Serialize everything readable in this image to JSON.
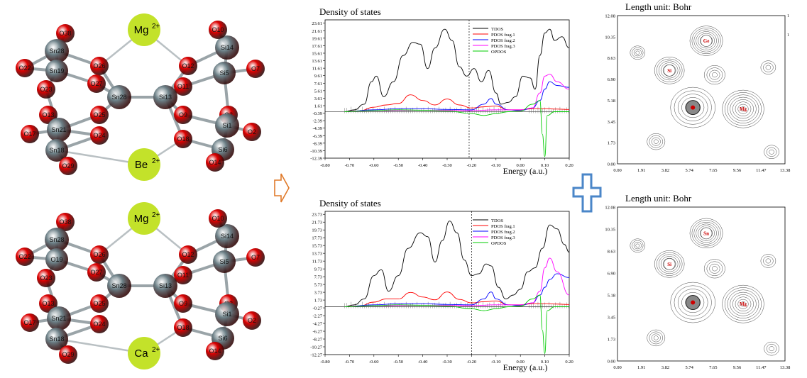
{
  "molecules": {
    "top": {
      "cations": [
        "Mg2+",
        "Be2+"
      ],
      "labels": [
        "O38",
        "Sn28",
        "O22",
        "Sn19",
        "O23",
        "O26",
        "O27",
        "Sn28",
        "O13",
        "O25",
        "Sn21",
        "O17",
        "O24",
        "Sn18",
        "O29",
        "O18",
        "Si14",
        "O12",
        "Si5",
        "O7",
        "O11",
        "Si13",
        "O9",
        "O3",
        "O10",
        "Si1",
        "O2",
        "Si6",
        "O14"
      ]
    },
    "bottom": {
      "cations": [
        "Mg2+",
        "Ca2+"
      ],
      "labels": [
        "O38",
        "Sn28",
        "O22",
        "O19",
        "O23",
        "O26",
        "O27",
        "Sn28",
        "O13",
        "O25",
        "Sn21",
        "O17",
        "O24",
        "Sn18",
        "O29",
        "O18",
        "Si14",
        "O12",
        "Si5",
        "O7",
        "O11",
        "Si13",
        "O9",
        "O3",
        "O10",
        "Si1",
        "O2",
        "Si6",
        "O14"
      ]
    }
  },
  "colors": {
    "tdos": "#000000",
    "pdos1": "#ff0000",
    "pdos2": "#0000ff",
    "pdos3": "#ff00ff",
    "opdos": "#00cc00",
    "oxygen": "#dd0000",
    "metal": "#6b7f86",
    "cation": "#c3e22a",
    "arrow": "#e07a2a",
    "plus": "#4a86c8"
  },
  "chart_data": [
    {
      "type": "line",
      "title": "Density of states",
      "xlabel": "Energy (a.u.)",
      "ylabel": "",
      "xlim": [
        -0.8,
        0.2
      ],
      "ylim": [
        -12.39,
        24.5
      ],
      "x_ticks": [
        "-0.80",
        "-0.70",
        "-0.60",
        "-0.50",
        "-0.40",
        "-0.30",
        "-0.20",
        "-0.10",
        "0.00",
        "0.10",
        "0.20"
      ],
      "y_ticks": [
        "23.61",
        "21.61",
        "19.61",
        "17.61",
        "15.61",
        "13.61",
        "11.61",
        "9.61",
        "7.61",
        "5.61",
        "3.61",
        "1.61",
        "-0.39",
        "-2.39",
        "-4.39",
        "-6.39",
        "-8.39",
        "-10.39",
        "-12.39"
      ],
      "homo_line": -0.21,
      "legend": [
        "TDOS",
        "PDOS frag.1",
        "PDOS frag.2",
        "PDOS frag.3",
        "OPDOS"
      ],
      "legend_position": "top-right",
      "series": [
        {
          "name": "TDOS",
          "x": [
            -0.72,
            -0.68,
            -0.64,
            -0.61,
            -0.59,
            -0.56,
            -0.52,
            -0.48,
            -0.44,
            -0.41,
            -0.38,
            -0.35,
            -0.31,
            -0.28,
            -0.25,
            -0.22,
            -0.19,
            -0.16,
            -0.13,
            -0.1,
            -0.08,
            -0.05,
            -0.02,
            0.01,
            0.04,
            0.06,
            0.08,
            0.1,
            0.12,
            0.14,
            0.17,
            0.2
          ],
          "y": [
            0,
            0.5,
            2,
            8,
            9.5,
            4,
            8,
            15,
            18.5,
            18,
            11.5,
            17,
            22,
            19,
            12,
            9.5,
            11.5,
            8,
            11,
            5,
            2,
            2.5,
            4,
            9.5,
            9,
            6,
            15,
            21,
            22,
            19,
            20,
            17
          ]
        },
        {
          "name": "PDOS frag.1",
          "x": [
            -0.72,
            -0.66,
            -0.6,
            -0.55,
            -0.5,
            -0.45,
            -0.4,
            -0.35,
            -0.3,
            -0.25,
            -0.2,
            -0.15,
            -0.1,
            -0.05,
            0.0,
            0.05,
            0.1,
            0.15,
            0.2
          ],
          "y": [
            0,
            0.2,
            1.2,
            1.8,
            2.2,
            4.5,
            3,
            1.8,
            3.4,
            1.8,
            1,
            1.3,
            1.5,
            0.5,
            0.5,
            0.8,
            0.8,
            0.7,
            0.6
          ]
        },
        {
          "name": "PDOS frag.2",
          "x": [
            -0.72,
            -0.6,
            -0.5,
            -0.4,
            -0.3,
            -0.2,
            -0.15,
            -0.12,
            -0.1,
            -0.05,
            0.0,
            0.05,
            0.08,
            0.1,
            0.12,
            0.15,
            0.2
          ],
          "y": [
            0,
            0.5,
            0.8,
            0.8,
            0.6,
            0.5,
            2,
            3.5,
            2,
            0.5,
            0.3,
            1,
            3,
            6,
            8,
            7,
            6.5
          ]
        },
        {
          "name": "PDOS frag.3",
          "x": [
            -0.72,
            -0.6,
            -0.4,
            -0.2,
            -0.1,
            0.0,
            0.05,
            0.08,
            0.1,
            0.12,
            0.15,
            0.2
          ],
          "y": [
            0,
            0.3,
            0.4,
            0.3,
            0.5,
            0.5,
            1,
            5,
            9.5,
            10,
            8,
            6
          ]
        },
        {
          "name": "OPDOS",
          "x": [
            -0.72,
            -0.6,
            -0.5,
            -0.4,
            -0.3,
            -0.2,
            -0.15,
            -0.1,
            -0.05,
            0.0,
            0.05,
            0.08,
            0.09,
            0.1,
            0.11,
            0.14,
            0.2
          ],
          "y": [
            0,
            0.3,
            0.5,
            0.4,
            0.2,
            -0.5,
            -1,
            -0.5,
            0,
            0.2,
            2,
            3,
            -6,
            -12,
            -1,
            0,
            0
          ]
        }
      ]
    },
    {
      "type": "line",
      "title": "Density of states",
      "xlabel": "Energy (a.u.)",
      "ylabel": "",
      "xlim": [
        -0.8,
        0.2
      ],
      "ylim": [
        -12.27,
        24.5
      ],
      "x_ticks": [
        "-0.80",
        "-0.70",
        "-0.60",
        "-0.50",
        "-0.40",
        "-0.30",
        "-0.20",
        "-0.10",
        "0.00",
        "0.10",
        "0.20"
      ],
      "y_ticks": [
        "23.73",
        "21.73",
        "19.73",
        "17.73",
        "15.73",
        "13.73",
        "11.73",
        "9.73",
        "7.73",
        "5.73",
        "3.73",
        "1.73",
        "-0.27",
        "-2.27",
        "-4.27",
        "-6.27",
        "-8.27",
        "-10.27",
        "-12.27"
      ],
      "homo_line": -0.2,
      "legend": [
        "TDOS",
        "PDOS frag.1",
        "PDOS frag.2",
        "PDOS frag.3",
        "OPDOS"
      ],
      "legend_position": "top-right",
      "series": [
        {
          "name": "TDOS",
          "x": [
            -0.72,
            -0.68,
            -0.64,
            -0.6,
            -0.57,
            -0.54,
            -0.5,
            -0.46,
            -0.41,
            -0.38,
            -0.35,
            -0.32,
            -0.29,
            -0.26,
            -0.23,
            -0.2,
            -0.17,
            -0.14,
            -0.12,
            -0.09,
            -0.06,
            -0.03,
            0.0,
            0.03,
            0.06,
            0.09,
            0.12,
            0.15,
            0.18,
            0.2
          ],
          "y": [
            0,
            0.5,
            2,
            8,
            9.5,
            4,
            8,
            15,
            19,
            18,
            11.5,
            17,
            22,
            19,
            12,
            8,
            8.5,
            11,
            10.5,
            5,
            2,
            3,
            4.5,
            9,
            10,
            15,
            21,
            20,
            16,
            14
          ]
        },
        {
          "name": "PDOS frag.1",
          "x": [
            -0.72,
            -0.66,
            -0.6,
            -0.55,
            -0.5,
            -0.45,
            -0.4,
            -0.35,
            -0.3,
            -0.25,
            -0.2,
            -0.15,
            -0.1,
            -0.05,
            0.0,
            0.05,
            0.1,
            0.15,
            0.2
          ],
          "y": [
            0,
            0.2,
            1.2,
            2,
            2,
            3.7,
            2.5,
            1.8,
            3.8,
            1.9,
            1,
            1.3,
            1.5,
            0.5,
            0.5,
            0.8,
            0.8,
            0.7,
            0.6
          ]
        },
        {
          "name": "PDOS frag.2",
          "x": [
            -0.72,
            -0.6,
            -0.5,
            -0.4,
            -0.3,
            -0.2,
            -0.15,
            -0.12,
            -0.1,
            -0.05,
            0.0,
            0.05,
            0.08,
            0.1,
            0.12,
            0.15,
            0.2
          ],
          "y": [
            0,
            0.5,
            0.8,
            0.8,
            0.6,
            0.5,
            2,
            3.8,
            2,
            0.5,
            0.3,
            1,
            3,
            5,
            7,
            8.5,
            7.5
          ]
        },
        {
          "name": "PDOS frag.3",
          "x": [
            -0.72,
            -0.6,
            -0.4,
            -0.2,
            -0.1,
            0.0,
            0.05,
            0.08,
            0.1,
            0.12,
            0.15,
            0.2
          ],
          "y": [
            0,
            0.3,
            0.4,
            0.3,
            0.5,
            0.5,
            1,
            4,
            10,
            12.5,
            9,
            3
          ]
        },
        {
          "name": "OPDOS",
          "x": [
            -0.72,
            -0.6,
            -0.5,
            -0.4,
            -0.3,
            -0.2,
            -0.15,
            -0.1,
            -0.05,
            0.0,
            0.05,
            0.08,
            0.09,
            0.1,
            0.11,
            0.14,
            0.2
          ],
          "y": [
            0,
            0.3,
            0.5,
            0.4,
            0.2,
            -0.5,
            -1,
            -0.5,
            0,
            0.2,
            2,
            3,
            -6,
            -12,
            -1,
            0,
            0
          ]
        }
      ]
    }
  ],
  "contour_maps": [
    {
      "title": "Length unit: Bohr",
      "x_ticks": [
        "0.00",
        "1.91",
        "3.82",
        "5.74",
        "7.65",
        "9.56",
        "11.47",
        "13.38"
      ],
      "y_ticks": [
        "12.08",
        "10.35",
        "8.63",
        "6.90",
        "5.18",
        "3.45",
        "1.73",
        "0.00"
      ],
      "atoms": [
        "Ge",
        "Si",
        "Mg"
      ],
      "edge_labels": [
        "1",
        "1"
      ]
    },
    {
      "title": "Length unit: Bohr",
      "x_ticks": [
        "0.00",
        "1.91",
        "3.82",
        "5.74",
        "7.65",
        "9.56",
        "11.47",
        "13.38"
      ],
      "y_ticks": [
        "12.08",
        "10.35",
        "8.63",
        "6.90",
        "5.18",
        "3.45",
        "1.73",
        "0.00"
      ],
      "atoms": [
        "Sn",
        "Si",
        "Mg"
      ]
    }
  ]
}
